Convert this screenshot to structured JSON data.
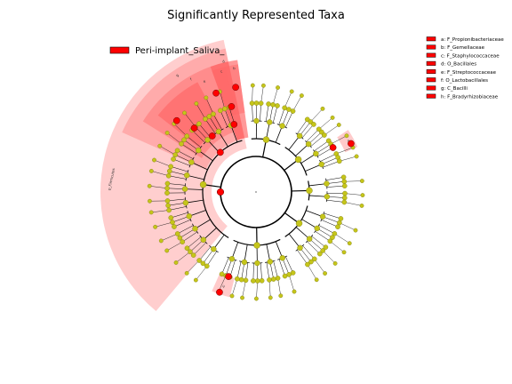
{
  "title": "Significantly Represented Taxa",
  "main_legend": {
    "label": "Peri-implant_Saliva_",
    "color": "#ff0000"
  },
  "clade_legend": [
    {
      "key": "a",
      "label": "a: F_Propionibacteriaceae"
    },
    {
      "key": "b",
      "label": "b: F_Gemellaceae"
    },
    {
      "key": "c",
      "label": "c: F_Staphylococcaceae"
    },
    {
      "key": "d",
      "label": "d: O_Bacillales"
    },
    {
      "key": "e",
      "label": "e: F_Streptococcaceae"
    },
    {
      "key": "f",
      "label": "f: O_Lactobacillales"
    },
    {
      "key": "g",
      "label": "g: C_Bacilli"
    },
    {
      "key": "h",
      "label": "h: F_Bradyrhizobiaceae"
    }
  ],
  "phylum_label": "p_Firmicutes",
  "wedge_letters": [
    "g",
    "f",
    "e",
    "d",
    "c",
    "b",
    "a",
    "h"
  ],
  "colors": {
    "highlight": "#ff0000",
    "node": "#c5c51a",
    "node_edge": "#7a7a10",
    "branch": "#000000"
  }
}
